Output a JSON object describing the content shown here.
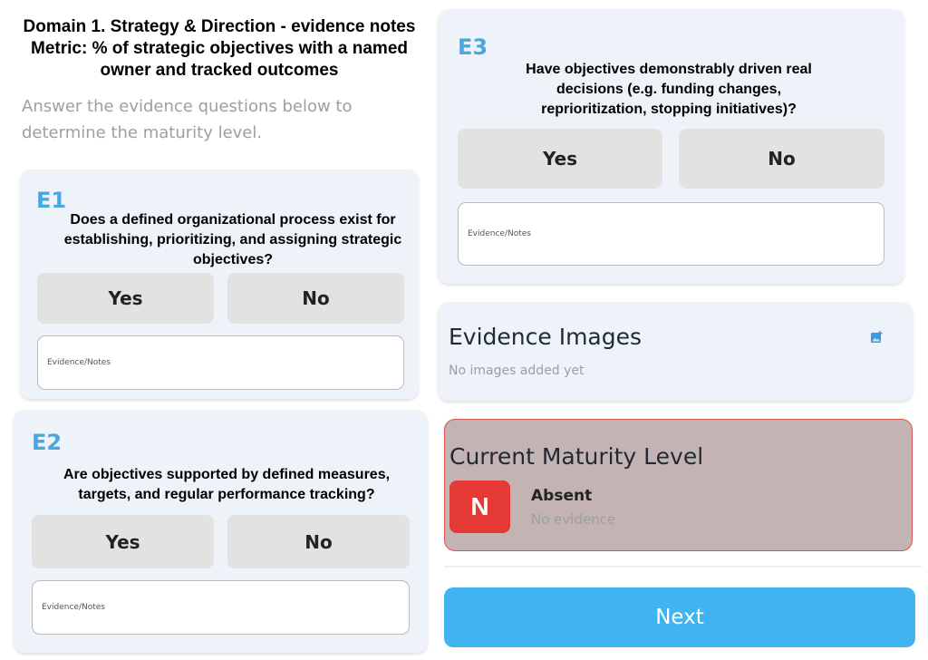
{
  "header": {
    "line1": "Domain 1. Strategy & Direction - evidence notes",
    "line2": "Metric: % of strategic objectives with a named",
    "line3": "owner and tracked outcomes"
  },
  "intro": "Answer the evidence questions below to determine the maturity level.",
  "questions": [
    {
      "id": "E1",
      "text": "Does a defined organizational process exist for establishing, prioritizing, and assigning strategic objectives?",
      "yes": "Yes",
      "no": "No",
      "notes_placeholder": "Evidence/Notes"
    },
    {
      "id": "E2",
      "text": "Are objectives supported by defined measures, targets, and regular performance tracking?",
      "yes": "Yes",
      "no": "No",
      "notes_placeholder": "Evidence/Notes"
    },
    {
      "id": "E3",
      "text": "Have objectives demonstrably driven real decisions (e.g. funding changes, reprioritization, stopping initiatives)?",
      "yes": "Yes",
      "no": "No",
      "notes_placeholder": "Evidence/Notes"
    }
  ],
  "images": {
    "title": "Evidence Images",
    "empty": "No images added yet",
    "icon": "add-photo-icon"
  },
  "maturity": {
    "title": "Current Maturity Level",
    "badge": "N",
    "level": "Absent",
    "desc": "No evidence",
    "badge_color": "#e53935",
    "card_color": "#c4b3b3",
    "border_color": "#d9534f"
  },
  "next": "Next",
  "colors": {
    "accent": "#40b4f0",
    "qid": "#4aa8e0"
  }
}
